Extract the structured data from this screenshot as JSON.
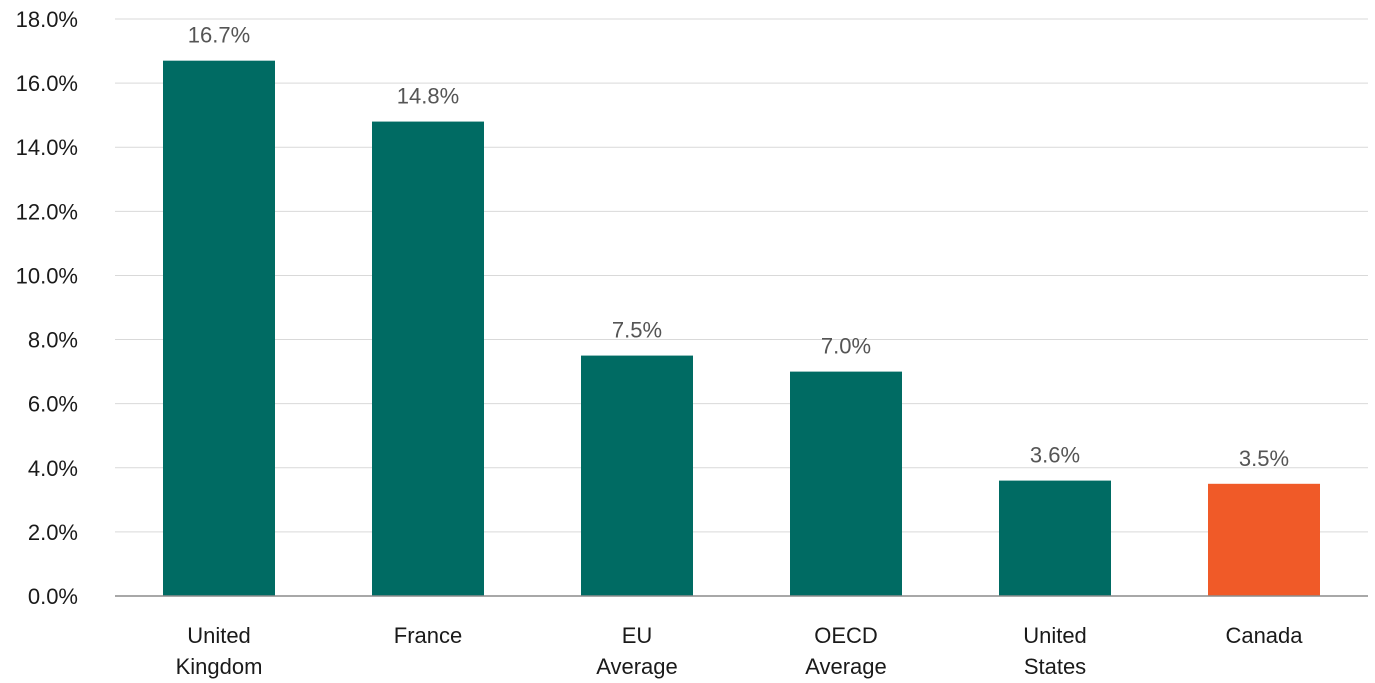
{
  "chart_data": {
    "type": "bar",
    "title": "",
    "xlabel": "",
    "ylabel": "",
    "categories": [
      [
        "United",
        "Kingdom"
      ],
      [
        "France"
      ],
      [
        "EU",
        "Average"
      ],
      [
        "OECD",
        "Average"
      ],
      [
        "United",
        "States"
      ],
      [
        "Canada"
      ]
    ],
    "values": [
      16.7,
      14.8,
      7.5,
      7.0,
      3.6,
      3.5
    ],
    "value_labels": [
      "16.7%",
      "14.8%",
      "7.5%",
      "7.0%",
      "3.6%",
      "3.5%"
    ],
    "ylim": [
      0,
      18
    ],
    "y_ticks": [
      0,
      2,
      4,
      6,
      8,
      10,
      12,
      14,
      16,
      18
    ],
    "y_tick_labels": [
      "0.0%",
      "2.0%",
      "4.0%",
      "6.0%",
      "8.0%",
      "10.0%",
      "12.0%",
      "14.0%",
      "16.0%",
      "18.0%"
    ],
    "grid": true,
    "legend": "none",
    "bar_colors": [
      "#006b63",
      "#006b63",
      "#006b63",
      "#006b63",
      "#006b63",
      "#f05a28"
    ]
  }
}
